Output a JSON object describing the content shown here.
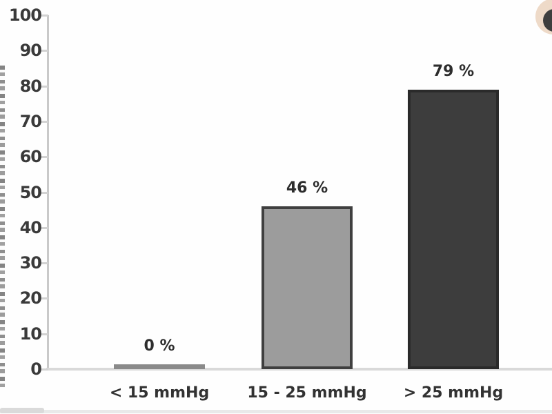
{
  "chart_data": {
    "type": "bar",
    "title": "",
    "xlabel": "",
    "ylabel": "",
    "categories": [
      "< 15 mmHg",
      "15 - 25 mmHg",
      "> 25 mmHg"
    ],
    "values": [
      0,
      46,
      79
    ],
    "value_labels": [
      "0 %",
      "46 %",
      "79 %"
    ],
    "ylim": [
      0,
      100
    ],
    "ytick_labels": [
      "0",
      "10",
      "20",
      "30",
      "40",
      "50",
      "60",
      "70",
      "80",
      "90",
      "100"
    ],
    "grid": false,
    "legend": false,
    "bar_fills": [
      "#8a8a8a",
      "#9c9c9c",
      "#3d3d3d"
    ],
    "bar_borders": [
      "#8a8a8a",
      "#3f3f3f",
      "#2a2a2a"
    ],
    "axis_color": "#c9c9c9",
    "tick_label_color": "#3a3a3a",
    "value_label_color": "#2d2d2d"
  },
  "decorations": {
    "corner_badge_color": "#eedac8",
    "corner_badge_dot_color": "#3e3e3e"
  }
}
